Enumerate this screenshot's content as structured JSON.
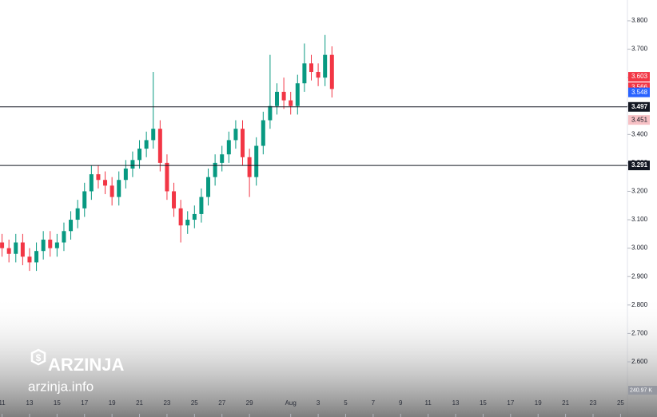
{
  "chart_data": {
    "type": "candlestick",
    "x": [
      11,
      11.5,
      12,
      12.5,
      13,
      13.5,
      14,
      14.5,
      15,
      15.5,
      16,
      16.5,
      17,
      17.5,
      18,
      18.5,
      19,
      19.5,
      20,
      20.5,
      21,
      21.5,
      22,
      22.5,
      23,
      23.5,
      24,
      24.5,
      25,
      25.5,
      26,
      26.5,
      27,
      27.5,
      28,
      28.5,
      29,
      29.5,
      30,
      30.5,
      31,
      31.5,
      32,
      32.5,
      33,
      33.5,
      34,
      34.5,
      35
    ],
    "open": [
      3.02,
      3.0,
      2.98,
      3.02,
      2.97,
      2.95,
      2.99,
      3.03,
      3.0,
      3.02,
      3.06,
      3.1,
      3.14,
      3.2,
      3.26,
      3.24,
      3.22,
      3.18,
      3.24,
      3.28,
      3.31,
      3.35,
      3.38,
      3.42,
      3.3,
      3.2,
      3.14,
      3.08,
      3.1,
      3.12,
      3.18,
      3.25,
      3.3,
      3.33,
      3.38,
      3.42,
      3.32,
      3.25,
      3.36,
      3.45,
      3.5,
      3.55,
      3.52,
      3.5,
      3.58,
      3.65,
      3.62,
      3.6,
      3.68
    ],
    "high": [
      3.05,
      3.03,
      3.05,
      3.05,
      3.0,
      3.02,
      3.06,
      3.06,
      3.05,
      3.09,
      3.13,
      3.17,
      3.23,
      3.29,
      3.29,
      3.27,
      3.25,
      3.27,
      3.31,
      3.34,
      3.38,
      3.41,
      3.62,
      3.45,
      3.33,
      3.23,
      3.17,
      3.13,
      3.15,
      3.21,
      3.28,
      3.33,
      3.36,
      3.41,
      3.45,
      3.45,
      3.35,
      3.39,
      3.48,
      3.68,
      3.58,
      3.6,
      3.55,
      3.61,
      3.72,
      3.68,
      3.65,
      3.75,
      3.71
    ],
    "low": [
      2.97,
      2.95,
      2.95,
      2.94,
      2.92,
      2.92,
      2.96,
      2.97,
      2.97,
      2.99,
      3.03,
      3.07,
      3.11,
      3.17,
      3.21,
      3.19,
      3.15,
      3.15,
      3.21,
      3.25,
      3.28,
      3.32,
      3.35,
      3.27,
      3.17,
      3.11,
      3.02,
      3.05,
      3.07,
      3.09,
      3.15,
      3.22,
      3.27,
      3.3,
      3.35,
      3.29,
      3.18,
      3.22,
      3.33,
      3.42,
      3.47,
      3.49,
      3.47,
      3.47,
      3.55,
      3.59,
      3.57,
      3.57,
      3.53
    ],
    "close": [
      3.0,
      2.98,
      3.02,
      2.97,
      2.95,
      2.99,
      3.03,
      3.0,
      3.02,
      3.06,
      3.1,
      3.14,
      3.2,
      3.26,
      3.24,
      3.22,
      3.18,
      3.24,
      3.28,
      3.31,
      3.35,
      3.38,
      3.42,
      3.3,
      3.2,
      3.14,
      3.08,
      3.1,
      3.12,
      3.18,
      3.25,
      3.3,
      3.33,
      3.38,
      3.42,
      3.32,
      3.25,
      3.36,
      3.45,
      3.5,
      3.55,
      3.52,
      3.5,
      3.58,
      3.65,
      3.62,
      3.6,
      3.68,
      3.56
    ],
    "up_color": "#089981",
    "down_color": "#f23645",
    "xlim": [
      10.85,
      56.5
    ],
    "xticks": [
      11,
      13,
      15,
      17,
      19,
      21,
      23,
      25,
      27,
      29,
      {
        "value": 32,
        "label": "Aug"
      },
      {
        "value": 34,
        "label": "3"
      },
      {
        "value": 36,
        "label": "5"
      },
      {
        "value": 38,
        "label": "7"
      },
      {
        "value": 40,
        "label": "9"
      },
      {
        "value": 42,
        "label": "11"
      },
      {
        "value": 44,
        "label": "13"
      },
      {
        "value": 46,
        "label": "15"
      },
      {
        "value": 48,
        "label": "17"
      },
      {
        "value": 50,
        "label": "19"
      },
      {
        "value": 52,
        "label": "21"
      },
      {
        "value": 54,
        "label": "23"
      },
      {
        "value": 56,
        "label": "25"
      }
    ],
    "ylim": [
      2.406,
      3.873
    ],
    "yticks": [
      {
        "value": 2.6,
        "label": "2.600"
      },
      {
        "value": 2.7,
        "label": "2.700"
      },
      {
        "value": 2.8,
        "label": "2.800"
      },
      {
        "value": 2.9,
        "label": "2.900"
      },
      {
        "value": 3.0,
        "label": "3.000"
      },
      {
        "value": 3.1,
        "label": "3.100"
      },
      {
        "value": 3.2,
        "label": "3.200"
      },
      {
        "value": 3.3,
        "label": "3.300"
      },
      {
        "value": 3.4,
        "label": "3.400"
      },
      {
        "value": 3.5,
        "label": "3.500"
      },
      {
        "value": 3.6,
        "label": "3.600"
      },
      {
        "value": 3.7,
        "label": "3.700"
      },
      {
        "value": 3.8,
        "label": "3.800"
      }
    ],
    "levels": [
      {
        "value": 3.497,
        "label": "3.497"
      },
      {
        "value": 3.291,
        "label": "3.291"
      }
    ],
    "price_tags": [
      {
        "value": 3.603,
        "label": "3.603",
        "color": "#f23645"
      },
      {
        "value": 3.566,
        "label": "3.566",
        "color": "#f23645"
      },
      {
        "value": 3.548,
        "label": "3.548",
        "color": "#2962ff"
      },
      {
        "value": 3.451,
        "label": "3.451",
        "color": "#f7c1c5"
      }
    ],
    "volume_label": "240.97 K",
    "watermark": {
      "brand": "ARZINJA",
      "site": "arzinja.info"
    }
  }
}
